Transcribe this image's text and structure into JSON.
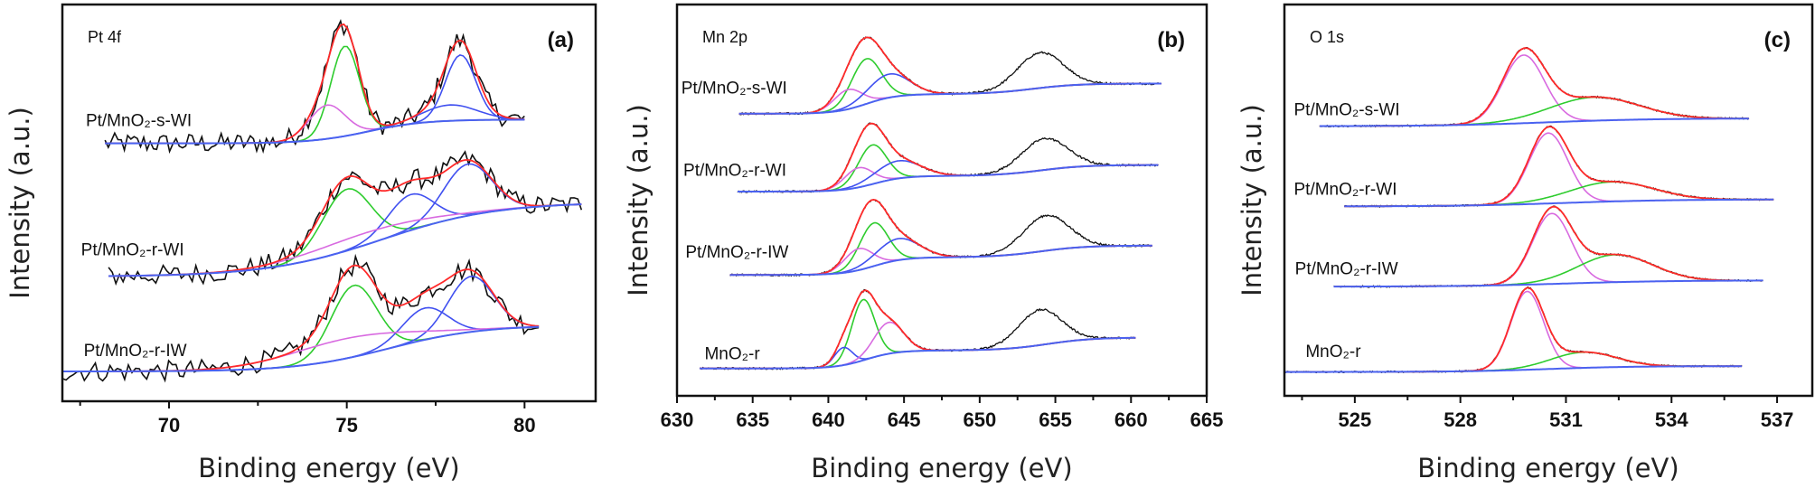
{
  "colors": {
    "experimental": "#111111",
    "envelope": "#ff2a2a",
    "green": "#2ecc2e",
    "blue": "#4050f0",
    "pink": "#d86ae0",
    "background": "#4a62f0"
  },
  "chart_data": [
    {
      "type": "line",
      "panel_label": "(a)",
      "title": "Pt 4f",
      "xlabel": "Binding energy (eV)",
      "ylabel": "Intensity (a.u.)",
      "xlim": [
        67,
        82
      ],
      "ylim": [
        0,
        100
      ],
      "xticks": [
        70,
        75,
        80
      ],
      "minor_ticks": [
        67.5,
        72.5,
        77.5
      ],
      "series": [
        {
          "name": "Pt/MnO₂-s-WI",
          "x_range": [
            68.2,
            80.0
          ],
          "background": {
            "start": 65,
            "steps": [
              {
                "center": 75.6,
                "width": 0.8,
                "rise": 6
              }
            ]
          },
          "peaks": [
            {
              "center": 74.95,
              "height": 22.7,
              "fwhm": 0.95,
              "color": "green"
            },
            {
              "center": 74.45,
              "height": 8.5,
              "fwhm": 1.2,
              "color": "pink"
            },
            {
              "center": 78.2,
              "height": 16.5,
              "fwhm": 1.0,
              "color": "blue"
            },
            {
              "center": 77.9,
              "height": 4,
              "fwhm": 1.8,
              "color": "blue"
            }
          ]
        },
        {
          "name": "Pt/MnO₂-r-WI",
          "x_range": [
            68.3,
            81.6
          ],
          "background": {
            "start": 31.4,
            "steps": [
              {
                "center": 76,
                "width": 1.6,
                "rise": 18.8
              }
            ]
          },
          "peaks": [
            {
              "center": 75.0,
              "height": 15.5,
              "fwhm": 1.6,
              "color": "green"
            },
            {
              "center": 76.8,
              "height": 9,
              "fwhm": 1.5,
              "color": "blue"
            },
            {
              "center": 78.4,
              "height": 13,
              "fwhm": 1.6,
              "color": "blue"
            },
            {
              "center": 75.5,
              "height": 3,
              "fwhm": 4,
              "color": "pink"
            }
          ]
        },
        {
          "name": "Pt/MnO₂-r-IW",
          "x_range": [
            67.0,
            80.4
          ],
          "background": {
            "start": 7.5,
            "steps": [
              {
                "center": 76.2,
                "width": 1.3,
                "rise": 11.7
              }
            ]
          },
          "peaks": [
            {
              "center": 75.2,
              "height": 18,
              "fwhm": 1.5,
              "color": "green"
            },
            {
              "center": 77.2,
              "height": 8,
              "fwhm": 1.5,
              "color": "blue"
            },
            {
              "center": 78.5,
              "height": 14,
              "fwhm": 1.5,
              "color": "blue"
            },
            {
              "center": 75.0,
              "height": 5,
              "fwhm": 4,
              "color": "pink"
            }
          ]
        }
      ]
    },
    {
      "type": "line",
      "panel_label": "(b)",
      "title": "Mn 2p",
      "xlabel": "Binding energy (eV)",
      "ylabel": "Intensity (a.u.)",
      "xlim": [
        630,
        665
      ],
      "ylim": [
        0,
        100
      ],
      "xticks": [
        630,
        635,
        640,
        645,
        650,
        655,
        660,
        665
      ],
      "minor_ticks": [
        632.5,
        637.5,
        642.5,
        647.5,
        652.5,
        657.5,
        662.5
      ],
      "series": [
        {
          "name": "Pt/MnO₂-s-WI",
          "x_range": [
            634.1,
            662.0
          ],
          "background": {
            "start": 72.1,
            "steps": [
              {
                "center": 642.5,
                "width": 1.0,
                "rise": 5
              },
              {
                "center": 653.5,
                "width": 1.5,
                "rise": 2.7
              }
            ]
          },
          "peaks": [
            {
              "center": 642.5,
              "height": 11.5,
              "fwhm": 2.3,
              "color": "green"
            },
            {
              "center": 641.3,
              "height": 5,
              "fwhm": 2.2,
              "color": "pink"
            },
            {
              "center": 644.0,
              "height": 6,
              "fwhm": 3.2,
              "color": "blue"
            }
          ],
          "unfitted_peaks": [
            {
              "center": 654.0,
              "height": 9,
              "fwhm": 3.6
            }
          ]
        },
        {
          "name": "Pt/MnO₂-r-WI",
          "x_range": [
            634.0,
            661.8
          ],
          "background": {
            "start": 52.2,
            "steps": [
              {
                "center": 643,
                "width": 1.0,
                "rise": 4
              },
              {
                "center": 654,
                "width": 1.5,
                "rise": 2.8
              }
            ]
          },
          "peaks": [
            {
              "center": 642.9,
              "height": 10,
              "fwhm": 2.2,
              "color": "green"
            },
            {
              "center": 642.0,
              "height": 5,
              "fwhm": 2.2,
              "color": "pink"
            },
            {
              "center": 644.6,
              "height": 4.5,
              "fwhm": 3.5,
              "color": "blue"
            }
          ],
          "unfitted_peaks": [
            {
              "center": 654.3,
              "height": 8,
              "fwhm": 3.6
            }
          ]
        },
        {
          "name": "Pt/MnO₂-r-IW",
          "x_range": [
            633.5,
            661.4
          ],
          "background": {
            "start": 30.9,
            "steps": [
              {
                "center": 643,
                "width": 1.0,
                "rise": 4.5
              },
              {
                "center": 654,
                "width": 1.5,
                "rise": 3
              }
            ]
          },
          "peaks": [
            {
              "center": 643.0,
              "height": 11,
              "fwhm": 2.2,
              "color": "green"
            },
            {
              "center": 642.0,
              "height": 5.5,
              "fwhm": 2.2,
              "color": "pink"
            },
            {
              "center": 644.6,
              "height": 5.5,
              "fwhm": 3.3,
              "color": "blue"
            }
          ],
          "unfitted_peaks": [
            {
              "center": 654.4,
              "height": 9,
              "fwhm": 3.6
            }
          ]
        },
        {
          "name": "MnO₂-r",
          "x_range": [
            631.5,
            660.3
          ],
          "background": {
            "start": 7,
            "steps": [
              {
                "center": 642.5,
                "width": 1.0,
                "rise": 4.6
              },
              {
                "center": 654.5,
                "width": 1.5,
                "rise": 3.3
              }
            ]
          },
          "peaks": [
            {
              "center": 642.3,
              "height": 15.5,
              "fwhm": 1.8,
              "color": "green"
            },
            {
              "center": 641.0,
              "height": 4.5,
              "fwhm": 1.4,
              "color": "blue"
            },
            {
              "center": 644.0,
              "height": 8,
              "fwhm": 2.3,
              "color": "pink"
            }
          ],
          "unfitted_peaks": [
            {
              "center": 654.0,
              "height": 9,
              "fwhm": 3.4
            }
          ]
        }
      ]
    },
    {
      "type": "line",
      "panel_label": "(c)",
      "title": "O 1s",
      "xlabel": "Binding energy (eV)",
      "ylabel": "Intensity (a.u.)",
      "xlim": [
        523,
        538
      ],
      "ylim": [
        0,
        100
      ],
      "xticks": [
        525,
        528,
        531,
        534,
        537
      ],
      "minor_ticks": [
        523.5,
        526.5,
        529.5,
        532.5,
        535.5
      ],
      "series": [
        {
          "name": "Pt/MnO₂-s-WI",
          "x_range": [
            524.0,
            536.2
          ],
          "background": {
            "start": 68.9,
            "steps": [
              {
                "center": 530.5,
                "width": 1.5,
                "rise": 2
              }
            ]
          },
          "peaks": [
            {
              "center": 529.8,
              "height": 17.4,
              "fwhm": 1.4,
              "color": "pink"
            },
            {
              "center": 531.8,
              "height": 6,
              "fwhm": 3.0,
              "color": "green"
            }
          ]
        },
        {
          "name": "Pt/MnO₂-r-WI",
          "x_range": [
            524.7,
            536.9
          ],
          "background": {
            "start": 48.4,
            "steps": [
              {
                "center": 531,
                "width": 1.5,
                "rise": 1.8
              }
            ]
          },
          "peaks": [
            {
              "center": 530.5,
              "height": 18,
              "fwhm": 1.3,
              "color": "pink"
            },
            {
              "center": 532.3,
              "height": 5,
              "fwhm": 2.8,
              "color": "green"
            }
          ]
        },
        {
          "name": "Pt/MnO₂-r-IW",
          "x_range": [
            524.4,
            536.6
          ],
          "background": {
            "start": 27.9,
            "steps": [
              {
                "center": 531,
                "width": 1.5,
                "rise": 1.6
              }
            ]
          },
          "peaks": [
            {
              "center": 530.6,
              "height": 18,
              "fwhm": 1.3,
              "color": "pink"
            },
            {
              "center": 532.4,
              "height": 7,
              "fwhm": 2.5,
              "color": "green"
            }
          ]
        },
        {
          "name": "MnO₂-r",
          "x_range": [
            523.0,
            536.0
          ],
          "background": {
            "start": 6.1,
            "steps": [
              {
                "center": 530.5,
                "width": 1.2,
                "rise": 1.5
              }
            ]
          },
          "peaks": [
            {
              "center": 529.9,
              "height": 20,
              "fwhm": 1.1,
              "color": "pink"
            },
            {
              "center": 531.5,
              "height": 4,
              "fwhm": 2.2,
              "color": "green"
            }
          ]
        }
      ]
    }
  ]
}
